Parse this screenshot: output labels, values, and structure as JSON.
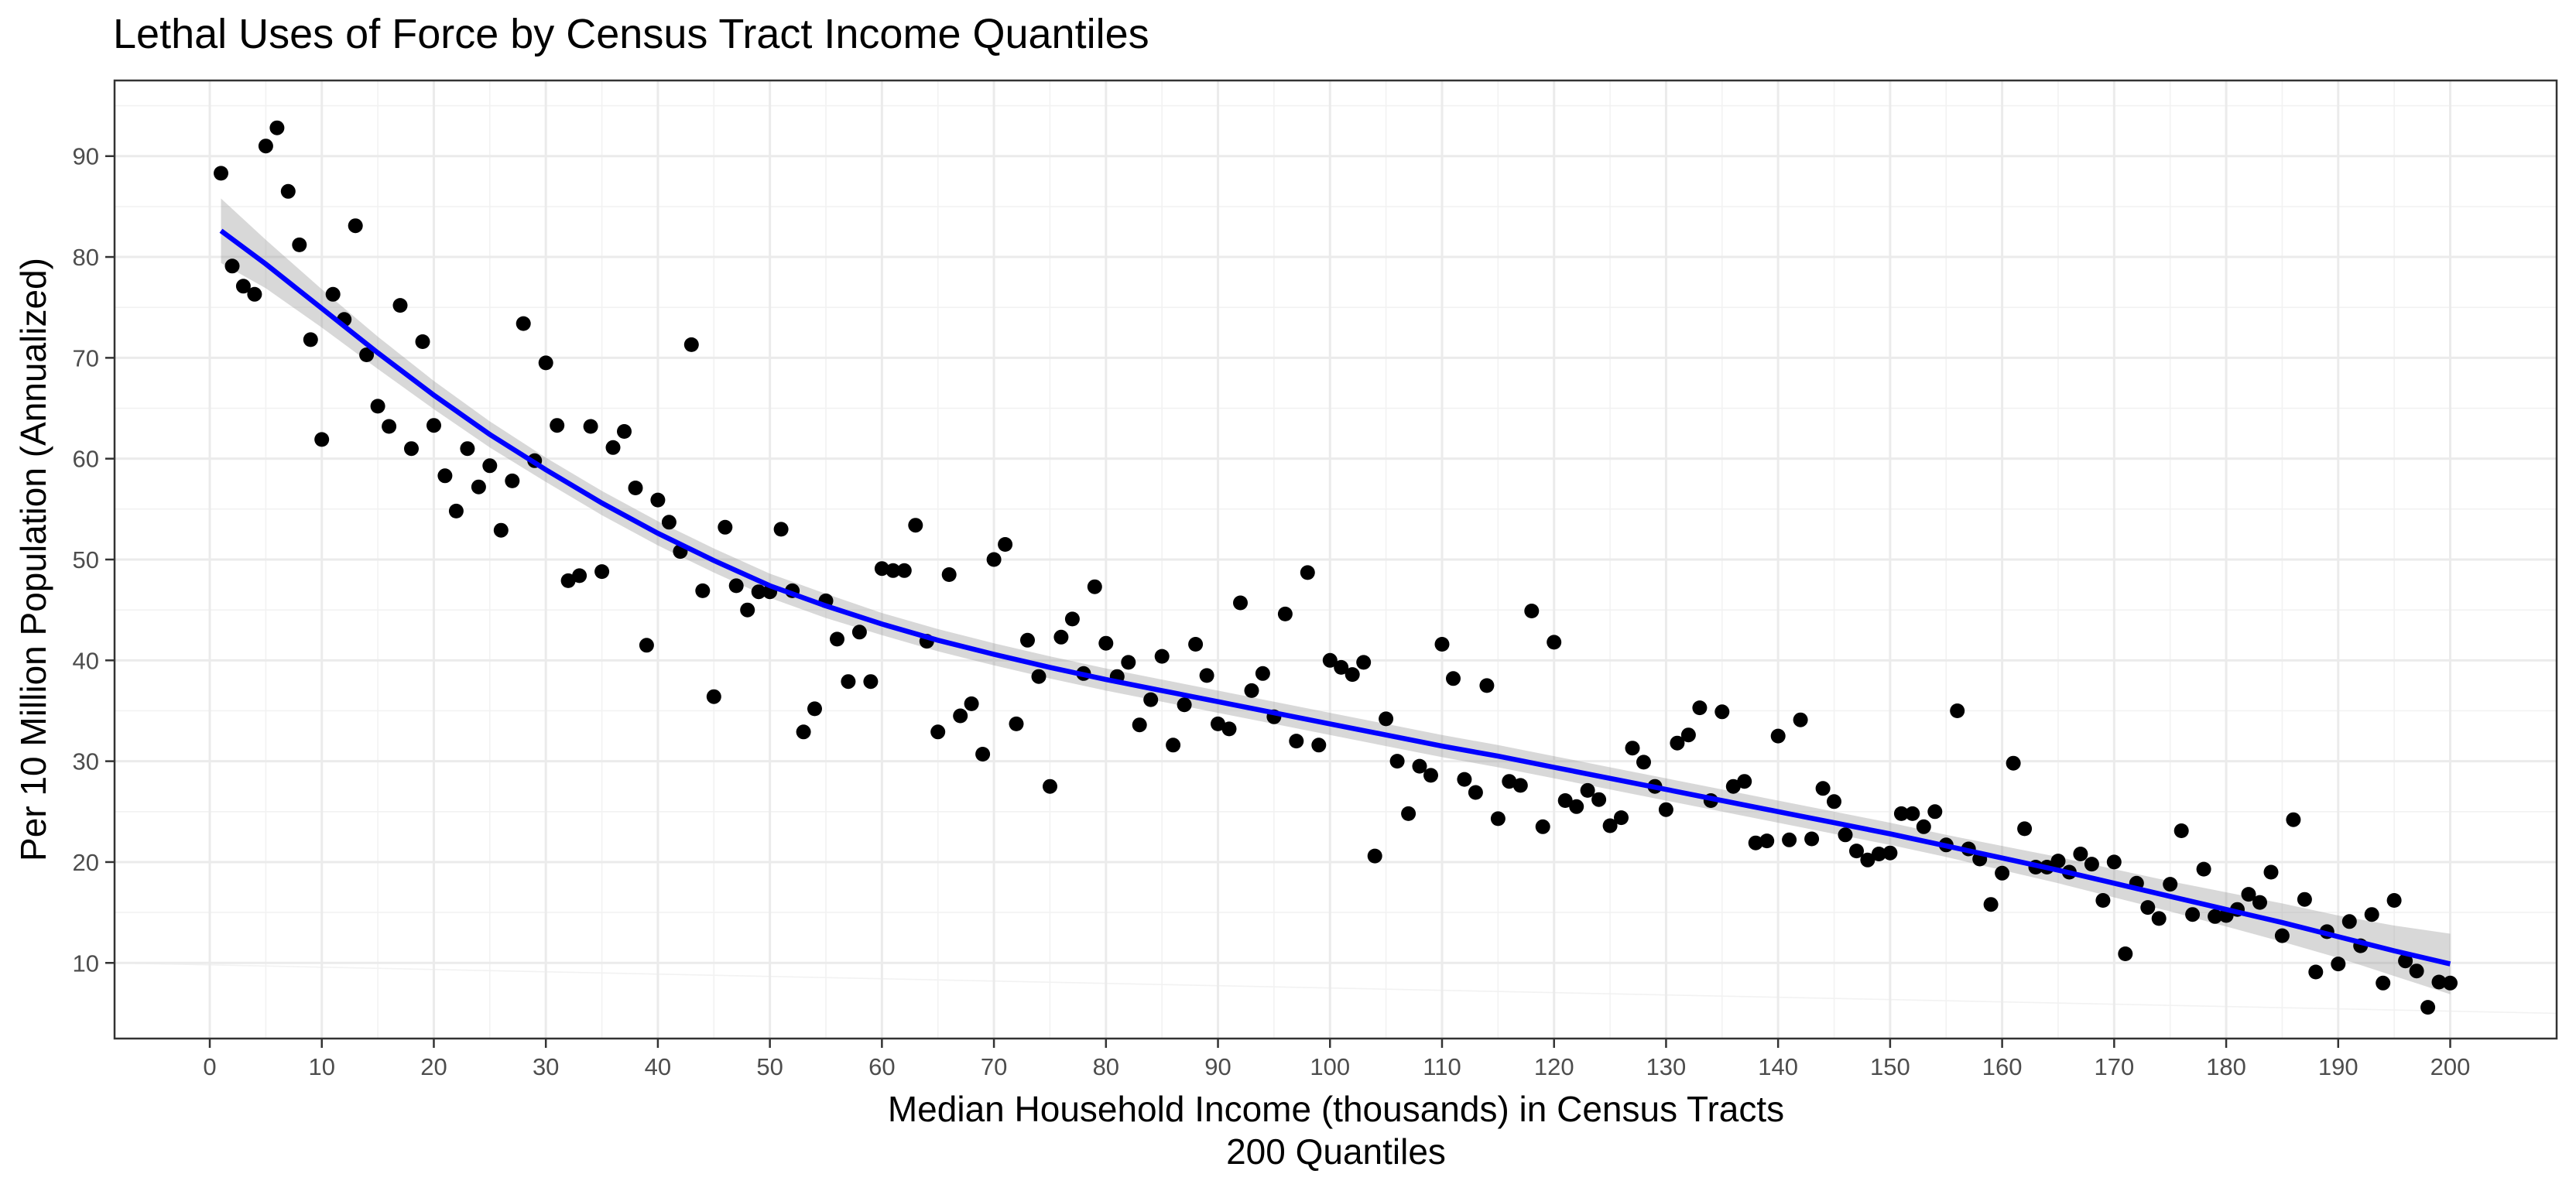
{
  "chart_data": {
    "type": "scatter",
    "title": "Lethal Uses of Force by Census Tract Income Quantiles",
    "xlabel": "Median Household Income (thousands) in Census Tracts",
    "xlabel_sub": "200 Quantiles",
    "ylabel": "Per 10 Million Population (Annualized)",
    "xlim": [
      -8.5,
      209.5
    ],
    "ylim": [
      2.5,
      97.5
    ],
    "x_ticks": [
      0,
      10,
      20,
      30,
      40,
      50,
      60,
      70,
      80,
      90,
      100,
      110,
      120,
      130,
      140,
      150,
      160,
      170,
      180,
      190,
      200
    ],
    "y_ticks": [
      10,
      20,
      30,
      40,
      50,
      60,
      70,
      80,
      90
    ],
    "grid": true,
    "colors": {
      "points": "#000000",
      "smooth_line": "#0000ff",
      "ribbon": "#999999"
    },
    "series": [
      {
        "kind": "points",
        "x": [
          1,
          2,
          3,
          4,
          5,
          6,
          7,
          8,
          9,
          10,
          11,
          12,
          13,
          14,
          15,
          16,
          17,
          18,
          19,
          20,
          21,
          22,
          23,
          24,
          25,
          26,
          27,
          28,
          29,
          30,
          31,
          32,
          33,
          34,
          35,
          36,
          37,
          38,
          39,
          40,
          41,
          42,
          43,
          44,
          45,
          46,
          47,
          48,
          49,
          50,
          51,
          52,
          53,
          54,
          55,
          56,
          57,
          58,
          59,
          60,
          61,
          62,
          63,
          64,
          65,
          66,
          67,
          68,
          69,
          70,
          71,
          72,
          73,
          74,
          75,
          76,
          77,
          78,
          79,
          80,
          81,
          82,
          83,
          84,
          85,
          86,
          87,
          88,
          89,
          90,
          91,
          92,
          93,
          94,
          95,
          96,
          97,
          98,
          99,
          100,
          101,
          102,
          103,
          104,
          105,
          106,
          107,
          108,
          109,
          110,
          111,
          112,
          113,
          114,
          115,
          116,
          117,
          118,
          119,
          120,
          121,
          122,
          123,
          124,
          125,
          126,
          127,
          128,
          129,
          130,
          131,
          132,
          133,
          134,
          135,
          136,
          137,
          138,
          139,
          140,
          141,
          142,
          143,
          144,
          145,
          146,
          147,
          148,
          149,
          150,
          151,
          152,
          153,
          154,
          155,
          156,
          157,
          158,
          159,
          160,
          161,
          162,
          163,
          164,
          165,
          166,
          167,
          168,
          169,
          170,
          171,
          172,
          173,
          174,
          175,
          176,
          177,
          178,
          179,
          180,
          181,
          182,
          183,
          184,
          185,
          186,
          187,
          188,
          189,
          190,
          191,
          192,
          193,
          194,
          195,
          196,
          197,
          198,
          199,
          200
        ],
        "y": [
          88.3,
          79.1,
          77.1,
          76.3,
          91.0,
          92.8,
          86.5,
          81.2,
          71.8,
          61.9,
          76.3,
          73.8,
          83.1,
          70.3,
          65.2,
          63.2,
          75.2,
          61.0,
          71.6,
          63.3,
          58.3,
          54.8,
          61.0,
          57.2,
          59.3,
          52.9,
          57.8,
          73.4,
          59.8,
          69.5,
          63.3,
          47.9,
          48.4,
          63.2,
          48.8,
          61.1,
          62.7,
          57.1,
          41.5,
          55.9,
          53.7,
          50.8,
          71.3,
          46.9,
          36.4,
          53.2,
          47.4,
          45.0,
          46.8,
          46.8,
          53.0,
          46.9,
          32.9,
          35.2,
          45.9,
          42.1,
          37.9,
          42.8,
          37.9,
          49.1,
          48.9,
          48.9,
          53.4,
          41.9,
          32.9,
          48.5,
          34.5,
          35.7,
          30.7,
          50.0,
          51.5,
          33.7,
          42.0,
          38.4,
          27.5,
          42.3,
          44.1,
          38.7,
          47.3,
          41.7,
          38.4,
          39.8,
          33.6,
          36.1,
          40.4,
          31.6,
          35.6,
          41.6,
          38.5,
          33.7,
          33.2,
          45.7,
          37.0,
          38.7,
          34.4,
          44.6,
          32.0,
          48.7,
          31.6,
          40.0,
          39.3,
          38.6,
          39.8,
          20.6,
          34.2,
          30.0,
          24.8,
          29.5,
          28.6,
          41.6,
          38.2,
          28.2,
          26.9,
          37.5,
          24.3,
          28.0,
          27.6,
          44.9,
          23.5,
          41.8,
          26.1,
          25.5,
          27.1,
          26.2,
          23.6,
          24.4,
          31.3,
          29.9,
          27.5,
          25.2,
          31.8,
          32.6,
          35.3,
          26.1,
          34.9,
          27.5,
          28.0,
          21.9,
          22.1,
          32.5,
          22.2,
          34.1,
          22.3,
          27.3,
          26.0,
          22.7,
          21.1,
          20.2,
          20.8,
          20.9,
          24.8,
          24.8,
          23.5,
          25.0,
          21.7,
          35.0,
          21.3,
          20.3,
          15.8,
          18.9,
          29.8,
          23.3,
          19.5,
          19.5,
          20.1,
          19.0,
          20.8,
          19.8,
          16.2,
          20.0,
          10.9,
          17.9,
          15.5,
          14.4,
          17.8,
          23.1,
          14.8,
          19.3,
          14.6,
          14.7,
          15.3,
          16.8,
          16.0,
          19.0,
          12.7,
          24.2,
          16.3,
          9.1,
          13.1,
          9.9,
          14.1,
          11.7,
          14.8,
          8.0,
          16.2,
          10.2,
          9.2,
          5.6,
          8.1,
          8.0
        ]
      },
      {
        "kind": "smooth",
        "x": [
          1,
          5,
          10,
          15,
          20,
          25,
          30,
          35,
          40,
          45,
          50,
          55,
          60,
          65,
          70,
          75,
          80,
          85,
          90,
          95,
          100,
          105,
          110,
          115,
          120,
          125,
          130,
          135,
          140,
          145,
          150,
          155,
          160,
          165,
          170,
          175,
          180,
          185,
          190,
          195,
          200
        ],
        "y": [
          82.6,
          79.3,
          74.9,
          70.5,
          66.3,
          62.4,
          58.9,
          55.6,
          52.6,
          49.9,
          47.4,
          45.4,
          43.6,
          42.0,
          40.6,
          39.3,
          38.1,
          37.0,
          35.9,
          34.8,
          33.7,
          32.6,
          31.5,
          30.5,
          29.4,
          28.3,
          27.2,
          26.1,
          25.0,
          23.9,
          22.8,
          21.6,
          20.4,
          19.2,
          17.9,
          16.6,
          15.3,
          14.0,
          12.6,
          11.2,
          9.9
        ],
        "band": [
          3.2,
          2.4,
          1.9,
          1.6,
          1.4,
          1.3,
          1.2,
          1.2,
          1.2,
          1.2,
          1.2,
          1.2,
          1.1,
          1.1,
          1.1,
          1.1,
          1.1,
          1.1,
          1.1,
          1.1,
          1.1,
          1.1,
          1.1,
          1.1,
          1.1,
          1.1,
          1.1,
          1.1,
          1.1,
          1.1,
          1.1,
          1.1,
          1.2,
          1.3,
          1.4,
          1.5,
          1.7,
          1.9,
          2.1,
          2.5,
          3.0
        ]
      }
    ]
  }
}
